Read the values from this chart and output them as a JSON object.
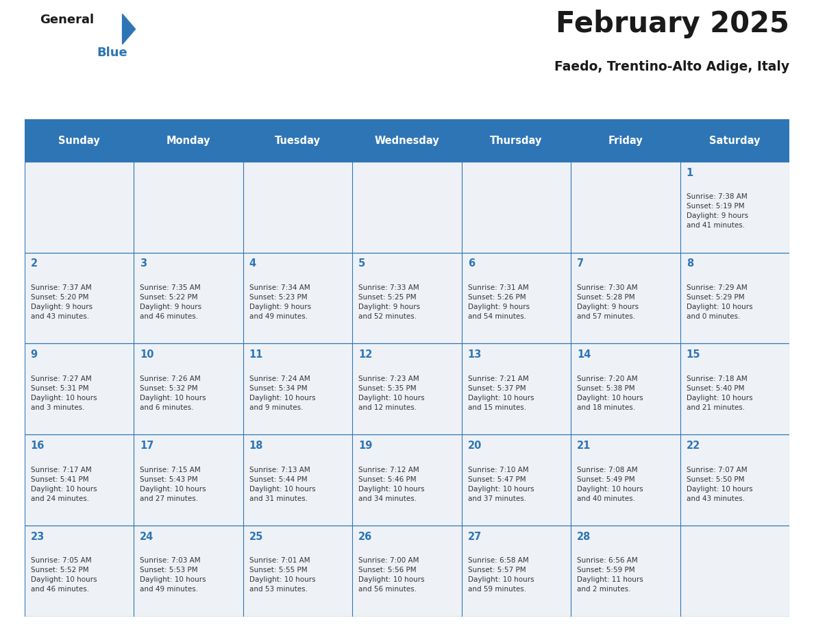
{
  "title": "February 2025",
  "subtitle": "Faedo, Trentino-Alto Adige, Italy",
  "days_of_week": [
    "Sunday",
    "Monday",
    "Tuesday",
    "Wednesday",
    "Thursday",
    "Friday",
    "Saturday"
  ],
  "header_bg": "#2E75B6",
  "header_fg": "#FFFFFF",
  "cell_bg": "#EEF2F7",
  "border_color": "#2E75B6",
  "day_num_color": "#2E75B6",
  "text_color": "#333333",
  "title_color": "#1a1a1a",
  "logo_general_color": "#1a1a1a",
  "logo_blue_color": "#2E75B6",
  "logo_triangle_color": "#2E75B6",
  "calendar_data": [
    [
      null,
      null,
      null,
      null,
      null,
      null,
      {
        "day": 1,
        "sunrise": "7:38 AM",
        "sunset": "5:19 PM",
        "daylight": "9 hours\nand 41 minutes."
      }
    ],
    [
      {
        "day": 2,
        "sunrise": "7:37 AM",
        "sunset": "5:20 PM",
        "daylight": "9 hours\nand 43 minutes."
      },
      {
        "day": 3,
        "sunrise": "7:35 AM",
        "sunset": "5:22 PM",
        "daylight": "9 hours\nand 46 minutes."
      },
      {
        "day": 4,
        "sunrise": "7:34 AM",
        "sunset": "5:23 PM",
        "daylight": "9 hours\nand 49 minutes."
      },
      {
        "day": 5,
        "sunrise": "7:33 AM",
        "sunset": "5:25 PM",
        "daylight": "9 hours\nand 52 minutes."
      },
      {
        "day": 6,
        "sunrise": "7:31 AM",
        "sunset": "5:26 PM",
        "daylight": "9 hours\nand 54 minutes."
      },
      {
        "day": 7,
        "sunrise": "7:30 AM",
        "sunset": "5:28 PM",
        "daylight": "9 hours\nand 57 minutes."
      },
      {
        "day": 8,
        "sunrise": "7:29 AM",
        "sunset": "5:29 PM",
        "daylight": "10 hours\nand 0 minutes."
      }
    ],
    [
      {
        "day": 9,
        "sunrise": "7:27 AM",
        "sunset": "5:31 PM",
        "daylight": "10 hours\nand 3 minutes."
      },
      {
        "day": 10,
        "sunrise": "7:26 AM",
        "sunset": "5:32 PM",
        "daylight": "10 hours\nand 6 minutes."
      },
      {
        "day": 11,
        "sunrise": "7:24 AM",
        "sunset": "5:34 PM",
        "daylight": "10 hours\nand 9 minutes."
      },
      {
        "day": 12,
        "sunrise": "7:23 AM",
        "sunset": "5:35 PM",
        "daylight": "10 hours\nand 12 minutes."
      },
      {
        "day": 13,
        "sunrise": "7:21 AM",
        "sunset": "5:37 PM",
        "daylight": "10 hours\nand 15 minutes."
      },
      {
        "day": 14,
        "sunrise": "7:20 AM",
        "sunset": "5:38 PM",
        "daylight": "10 hours\nand 18 minutes."
      },
      {
        "day": 15,
        "sunrise": "7:18 AM",
        "sunset": "5:40 PM",
        "daylight": "10 hours\nand 21 minutes."
      }
    ],
    [
      {
        "day": 16,
        "sunrise": "7:17 AM",
        "sunset": "5:41 PM",
        "daylight": "10 hours\nand 24 minutes."
      },
      {
        "day": 17,
        "sunrise": "7:15 AM",
        "sunset": "5:43 PM",
        "daylight": "10 hours\nand 27 minutes."
      },
      {
        "day": 18,
        "sunrise": "7:13 AM",
        "sunset": "5:44 PM",
        "daylight": "10 hours\nand 31 minutes."
      },
      {
        "day": 19,
        "sunrise": "7:12 AM",
        "sunset": "5:46 PM",
        "daylight": "10 hours\nand 34 minutes."
      },
      {
        "day": 20,
        "sunrise": "7:10 AM",
        "sunset": "5:47 PM",
        "daylight": "10 hours\nand 37 minutes."
      },
      {
        "day": 21,
        "sunrise": "7:08 AM",
        "sunset": "5:49 PM",
        "daylight": "10 hours\nand 40 minutes."
      },
      {
        "day": 22,
        "sunrise": "7:07 AM",
        "sunset": "5:50 PM",
        "daylight": "10 hours\nand 43 minutes."
      }
    ],
    [
      {
        "day": 23,
        "sunrise": "7:05 AM",
        "sunset": "5:52 PM",
        "daylight": "10 hours\nand 46 minutes."
      },
      {
        "day": 24,
        "sunrise": "7:03 AM",
        "sunset": "5:53 PM",
        "daylight": "10 hours\nand 49 minutes."
      },
      {
        "day": 25,
        "sunrise": "7:01 AM",
        "sunset": "5:55 PM",
        "daylight": "10 hours\nand 53 minutes."
      },
      {
        "day": 26,
        "sunrise": "7:00 AM",
        "sunset": "5:56 PM",
        "daylight": "10 hours\nand 56 minutes."
      },
      {
        "day": 27,
        "sunrise": "6:58 AM",
        "sunset": "5:57 PM",
        "daylight": "10 hours\nand 59 minutes."
      },
      {
        "day": 28,
        "sunrise": "6:56 AM",
        "sunset": "5:59 PM",
        "daylight": "11 hours\nand 2 minutes."
      },
      null
    ]
  ]
}
